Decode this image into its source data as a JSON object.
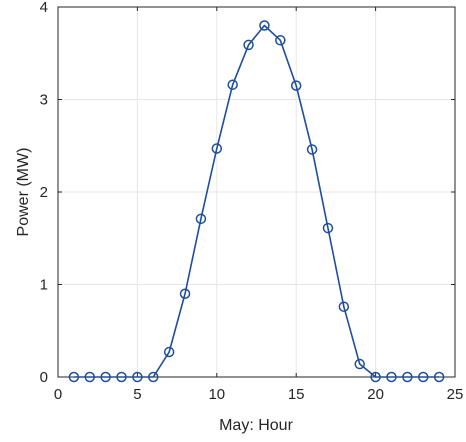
{
  "chart_data": {
    "type": "line",
    "title": "",
    "xlabel": "May: Hour",
    "ylabel": "Power (MW)",
    "xlim": [
      0,
      25
    ],
    "ylim": [
      0,
      4
    ],
    "x_ticks": [
      0,
      5,
      10,
      15,
      20,
      25
    ],
    "y_ticks": [
      0,
      1,
      2,
      3,
      4
    ],
    "grid": true,
    "colors": {
      "series": "#1f4e9c",
      "axis": "#262626",
      "grid": "#e6e6e6"
    },
    "series": [
      {
        "marker": "circle",
        "x": [
          1,
          2,
          3,
          4,
          5,
          6,
          7,
          8,
          9,
          10,
          11,
          12,
          13,
          14,
          15,
          16,
          17,
          18,
          19,
          20,
          21,
          22,
          23,
          24
        ],
        "y": [
          0,
          0,
          0,
          0,
          0,
          0,
          0.27,
          0.9,
          1.71,
          2.47,
          3.16,
          3.59,
          3.8,
          3.64,
          3.15,
          2.46,
          1.61,
          0.76,
          0.14,
          0,
          0,
          0,
          0,
          0
        ]
      }
    ]
  }
}
